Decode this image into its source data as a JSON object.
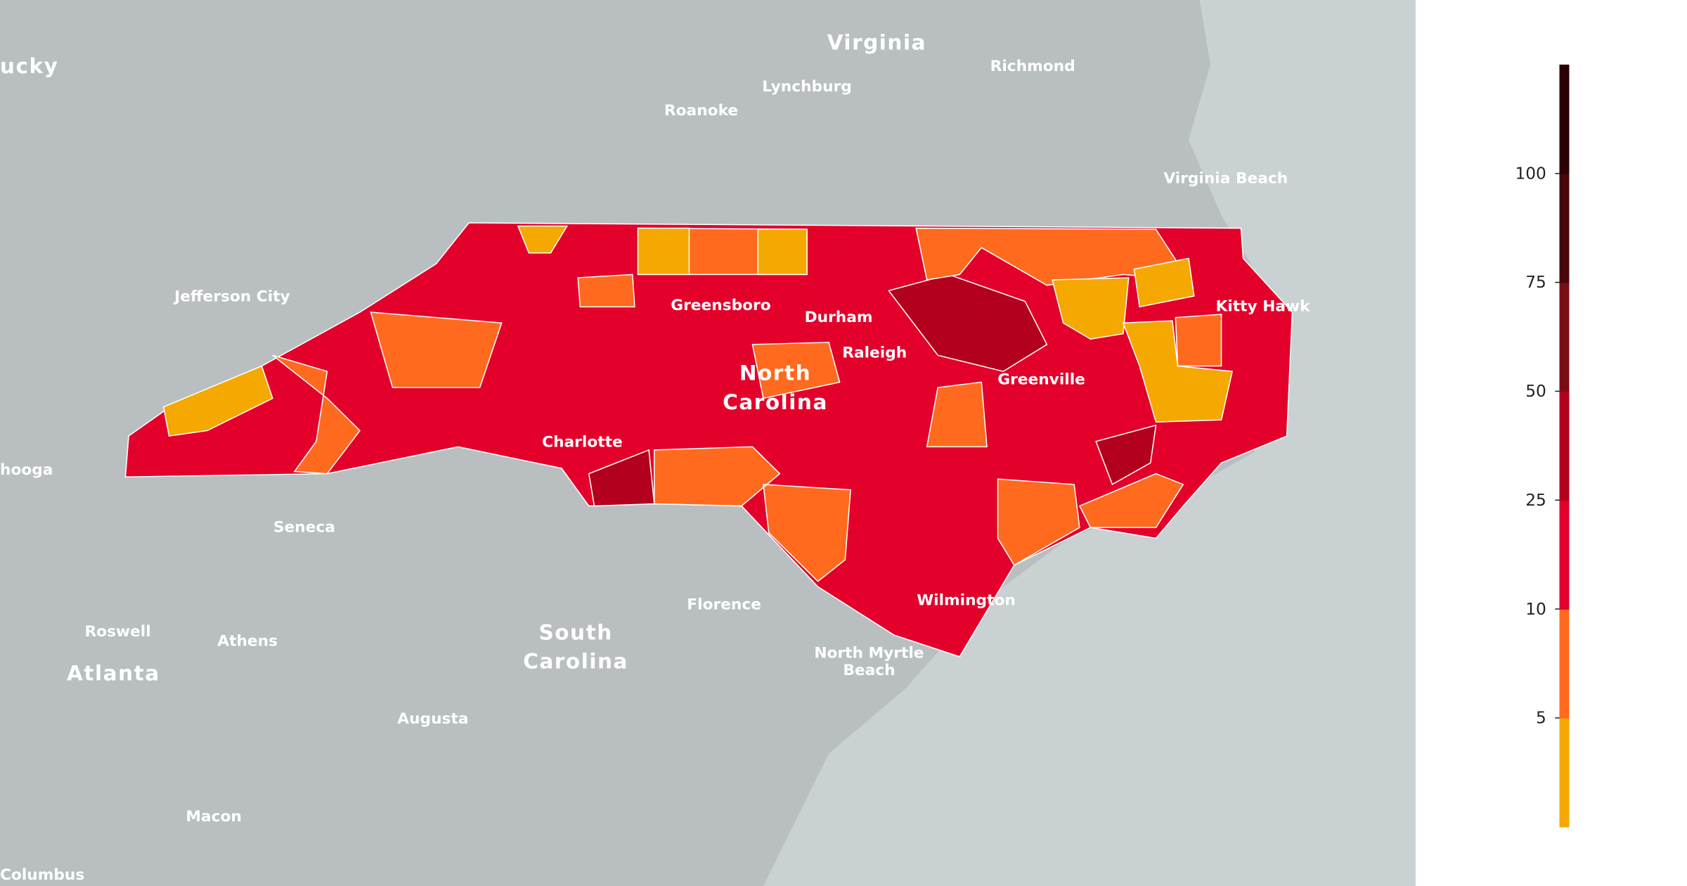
{
  "map": {
    "places": [
      "Virginia",
      "Richmond",
      "Lynchburg",
      "Roanoke",
      "Virginia Beach",
      "ucky",
      "Jefferson City",
      "Greensboro",
      "Durham",
      "Kitty Hawk",
      "Raleigh",
      "North",
      "Carolina",
      "Greenville",
      "Charlotte",
      "hooga",
      "Seneca",
      "Florence",
      "South",
      "Carolina",
      "Wilmington",
      "North Myrtle",
      "Beach",
      "Roswell",
      "Athens",
      "Atlanta",
      "Augusta",
      "Macon",
      "Columbus"
    ]
  },
  "legend": {
    "ticks": [
      5,
      10,
      25,
      50,
      75,
      100
    ],
    "colors": [
      "#f5a800",
      "#ff6a1f",
      "#e3002b",
      "#b3001e",
      "#7a0d14",
      "#4a0509",
      "#2a0004"
    ]
  }
}
